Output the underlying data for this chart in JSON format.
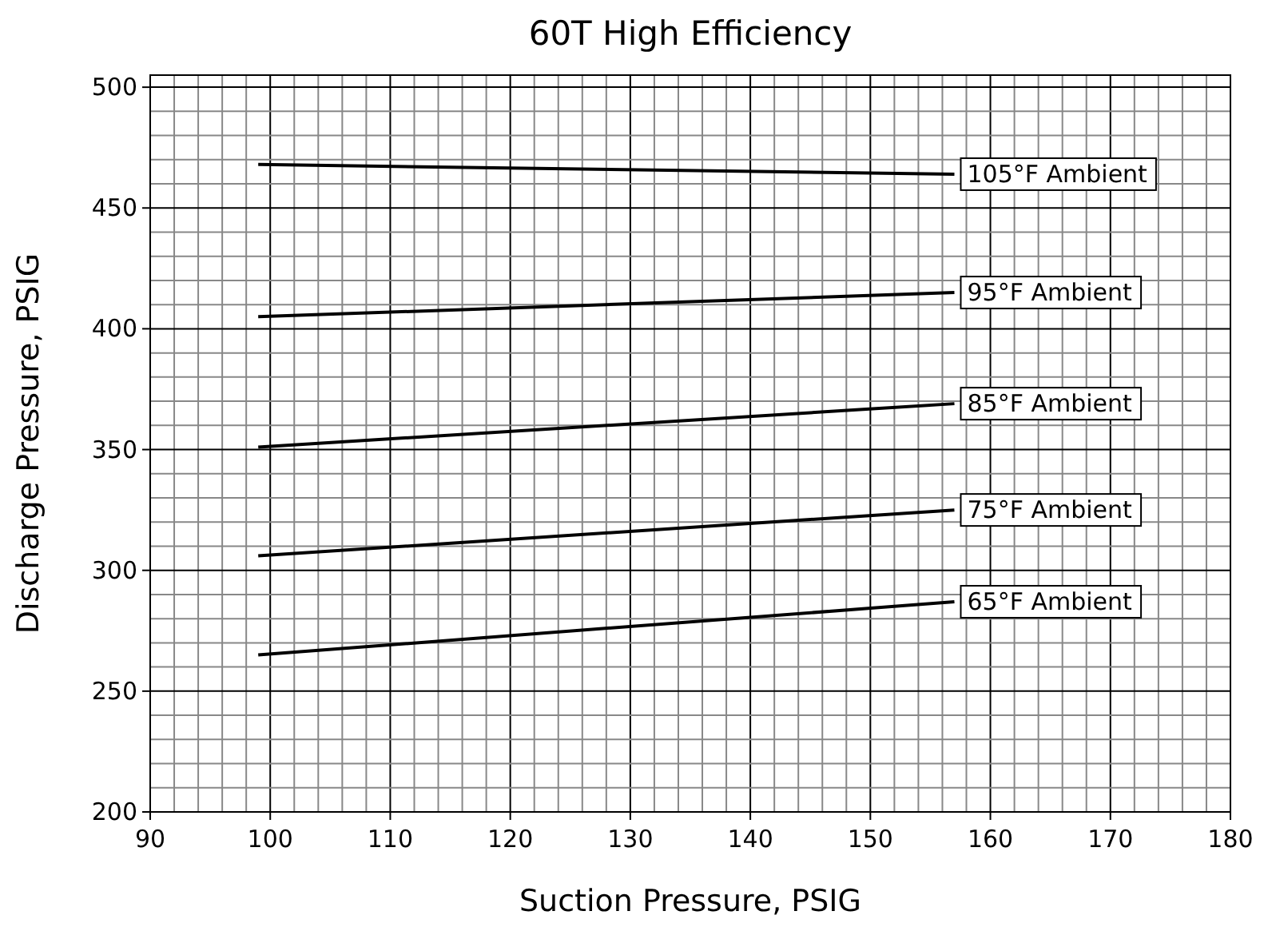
{
  "chart_data": {
    "type": "line",
    "title": "60T High Efficiency",
    "xlabel": "Suction Pressure, PSIG",
    "ylabel": "Discharge Pressure, PSIG",
    "xlim": [
      90,
      180
    ],
    "ylim": [
      200,
      505
    ],
    "xticks": [
      90,
      {
        "value": 92,
        "label": null
      },
      {
        "value": 94,
        "label": null
      },
      {
        "value": 96,
        "label": null
      },
      {
        "value": 98,
        "label": null
      },
      100,
      {
        "value": 102,
        "label": null
      },
      {
        "value": 104,
        "label": null
      },
      {
        "value": 106,
        "label": null
      },
      {
        "value": 108,
        "label": null
      },
      110,
      {
        "value": 112,
        "label": null
      },
      {
        "value": 114,
        "label": null
      },
      {
        "value": 116,
        "label": null
      },
      {
        "value": 118,
        "label": null
      },
      120,
      {
        "value": 122,
        "label": null
      },
      {
        "value": 124,
        "label": null
      },
      {
        "value": 126,
        "label": null
      },
      {
        "value": 128,
        "label": null
      },
      130,
      {
        "value": 132,
        "label": null
      },
      {
        "value": 134,
        "label": null
      },
      {
        "value": 136,
        "label": null
      },
      {
        "value": 138,
        "label": null
      },
      140,
      {
        "value": 142,
        "label": null
      },
      {
        "value": 144,
        "label": null
      },
      {
        "value": 146,
        "label": null
      },
      {
        "value": 148,
        "label": null
      },
      150,
      {
        "value": 152,
        "label": null
      },
      {
        "value": 154,
        "label": null
      },
      {
        "value": 156,
        "label": null
      },
      {
        "value": 158,
        "label": null
      },
      160,
      {
        "value": 162,
        "label": null
      },
      {
        "value": 164,
        "label": null
      },
      {
        "value": 166,
        "label": null
      },
      {
        "value": 168,
        "label": null
      },
      170,
      {
        "value": 172,
        "label": null
      },
      {
        "value": 174,
        "label": null
      },
      {
        "value": 176,
        "label": null
      },
      {
        "value": 178,
        "label": null
      },
      180
    ],
    "yticks": [
      200,
      {
        "value": 210,
        "label": null
      },
      {
        "value": 220,
        "label": null
      },
      {
        "value": 230,
        "label": null
      },
      {
        "value": 240,
        "label": null
      },
      250,
      {
        "value": 260,
        "label": null
      },
      {
        "value": 270,
        "label": null
      },
      {
        "value": 280,
        "label": null
      },
      {
        "value": 290,
        "label": null
      },
      300,
      {
        "value": 310,
        "label": null
      },
      {
        "value": 320,
        "label": null
      },
      {
        "value": 330,
        "label": null
      },
      {
        "value": 340,
        "label": null
      },
      350,
      {
        "value": 360,
        "label": null
      },
      {
        "value": 370,
        "label": null
      },
      {
        "value": 380,
        "label": null
      },
      {
        "value": 390,
        "label": null
      },
      400,
      {
        "value": 410,
        "label": null
      },
      {
        "value": 420,
        "label": null
      },
      {
        "value": 430,
        "label": null
      },
      {
        "value": 440,
        "label": null
      },
      450,
      {
        "value": 460,
        "label": null
      },
      {
        "value": 470,
        "label": null
      },
      {
        "value": 480,
        "label": null
      },
      {
        "value": 490,
        "label": null
      },
      500
    ],
    "grid": true,
    "x": [
      99,
      157
    ],
    "series": [
      {
        "name": "105°F Ambient",
        "color": "#000000",
        "values": [
          468,
          464
        ]
      },
      {
        "name": "95°F Ambient",
        "color": "#000000",
        "values": [
          405,
          415
        ]
      },
      {
        "name": "85°F Ambient",
        "color": "#000000",
        "values": [
          351,
          369
        ]
      },
      {
        "name": "75°F Ambient",
        "color": "#000000",
        "values": [
          306,
          325
        ]
      },
      {
        "name": "65°F Ambient",
        "color": "#000000",
        "values": [
          265,
          287
        ]
      }
    ]
  }
}
